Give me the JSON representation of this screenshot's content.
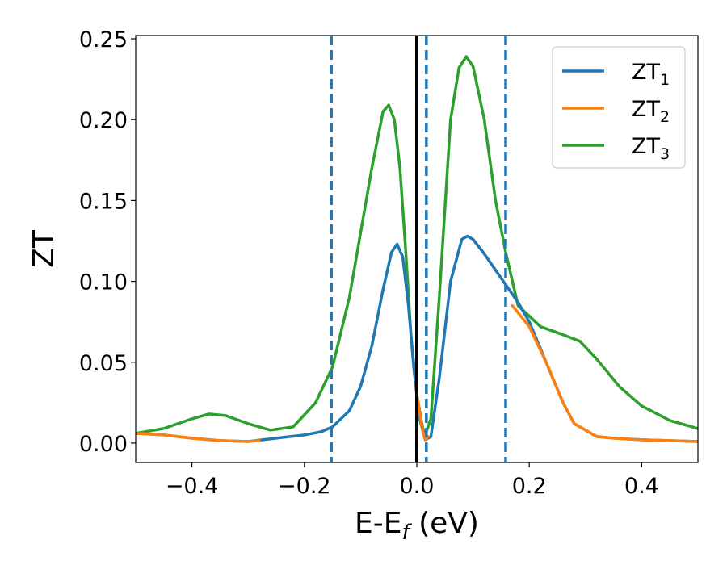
{
  "chart_data": {
    "type": "line",
    "xlabel_main": "E-E",
    "xlabel_sub": "f",
    "xlabel_unit": " (eV)",
    "ylabel": "ZT",
    "xlim": [
      -0.5,
      0.5
    ],
    "ylim": [
      -0.012,
      0.252
    ],
    "xticks": [
      -0.4,
      -0.2,
      0.0,
      0.2,
      0.4
    ],
    "xtick_labels": [
      "−0.4",
      "−0.2",
      "0.0",
      "0.2",
      "0.4"
    ],
    "yticks": [
      0.0,
      0.05,
      0.1,
      0.15,
      0.2,
      0.25
    ],
    "ytick_labels": [
      "0.00",
      "0.05",
      "0.10",
      "0.15",
      "0.20",
      "0.25"
    ],
    "legend_position": "top-right",
    "vlines": [
      {
        "x": -0.152,
        "style": "dashed",
        "color": "#1f77b4"
      },
      {
        "x": 0.0,
        "style": "solid",
        "color": "#000000"
      },
      {
        "x": 0.017,
        "style": "dashed",
        "color": "#1f77b4"
      },
      {
        "x": 0.158,
        "style": "dashed",
        "color": "#1f77b4"
      }
    ],
    "series": [
      {
        "name": "ZT",
        "sub": "3",
        "color": "#2ca02c",
        "points": [
          [
            -0.5,
            0.006
          ],
          [
            -0.45,
            0.009
          ],
          [
            -0.4,
            0.015
          ],
          [
            -0.37,
            0.018
          ],
          [
            -0.34,
            0.017
          ],
          [
            -0.3,
            0.012
          ],
          [
            -0.26,
            0.008
          ],
          [
            -0.22,
            0.01
          ],
          [
            -0.18,
            0.025
          ],
          [
            -0.15,
            0.047
          ],
          [
            -0.12,
            0.09
          ],
          [
            -0.1,
            0.13
          ],
          [
            -0.08,
            0.17
          ],
          [
            -0.06,
            0.205
          ],
          [
            -0.05,
            0.209
          ],
          [
            -0.04,
            0.2
          ],
          [
            -0.03,
            0.17
          ],
          [
            -0.02,
            0.12
          ],
          [
            -0.01,
            0.065
          ],
          [
            0.0,
            0.03
          ],
          [
            0.01,
            0.01
          ],
          [
            0.015,
            0.005
          ],
          [
            0.025,
            0.015
          ],
          [
            0.04,
            0.09
          ],
          [
            0.06,
            0.2
          ],
          [
            0.075,
            0.232
          ],
          [
            0.088,
            0.239
          ],
          [
            0.1,
            0.233
          ],
          [
            0.12,
            0.2
          ],
          [
            0.14,
            0.15
          ],
          [
            0.158,
            0.118
          ],
          [
            0.18,
            0.085
          ],
          [
            0.22,
            0.072
          ],
          [
            0.26,
            0.067
          ],
          [
            0.29,
            0.063
          ],
          [
            0.32,
            0.052
          ],
          [
            0.36,
            0.035
          ],
          [
            0.4,
            0.023
          ],
          [
            0.45,
            0.014
          ],
          [
            0.5,
            0.009
          ]
        ]
      },
      {
        "name": "ZT",
        "sub": "1",
        "color": "#1f77b4",
        "points": [
          [
            -0.5,
            0.006
          ],
          [
            -0.45,
            0.005
          ],
          [
            -0.4,
            0.003
          ],
          [
            -0.35,
            0.0015
          ],
          [
            -0.3,
            0.001
          ],
          [
            -0.25,
            0.003
          ],
          [
            -0.2,
            0.005
          ],
          [
            -0.17,
            0.007
          ],
          [
            -0.15,
            0.01
          ],
          [
            -0.12,
            0.02
          ],
          [
            -0.1,
            0.035
          ],
          [
            -0.08,
            0.06
          ],
          [
            -0.06,
            0.095
          ],
          [
            -0.045,
            0.118
          ],
          [
            -0.035,
            0.123
          ],
          [
            -0.025,
            0.115
          ],
          [
            -0.015,
            0.085
          ],
          [
            -0.005,
            0.045
          ],
          [
            0.005,
            0.015
          ],
          [
            0.015,
            0.002
          ],
          [
            0.025,
            0.004
          ],
          [
            0.04,
            0.04
          ],
          [
            0.06,
            0.1
          ],
          [
            0.08,
            0.126
          ],
          [
            0.09,
            0.128
          ],
          [
            0.1,
            0.126
          ],
          [
            0.12,
            0.117
          ],
          [
            0.15,
            0.102
          ],
          [
            0.18,
            0.087
          ],
          [
            0.2,
            0.075
          ],
          [
            0.23,
            0.05
          ],
          [
            0.26,
            0.025
          ],
          [
            0.28,
            0.012
          ],
          [
            0.32,
            0.004
          ],
          [
            0.35,
            0.003
          ],
          [
            0.4,
            0.002
          ],
          [
            0.5,
            0.001
          ]
        ]
      },
      {
        "name": "ZT",
        "sub": "2",
        "color": "#ff7f0e",
        "points": [
          [
            -0.5,
            0.006
          ],
          [
            -0.45,
            0.005
          ],
          [
            -0.4,
            0.003
          ],
          [
            -0.35,
            0.0015
          ],
          [
            -0.3,
            0.001
          ],
          [
            -0.28,
            0.0015
          ]
        ],
        "extra_segments": [
          [
            [
              0.17,
              0.085
            ],
            [
              0.2,
              0.072
            ],
            [
              0.23,
              0.05
            ],
            [
              0.26,
              0.025
            ],
            [
              0.28,
              0.012
            ],
            [
              0.32,
              0.004
            ],
            [
              0.35,
              0.003
            ],
            [
              0.4,
              0.002
            ],
            [
              0.5,
              0.001
            ]
          ],
          [
            [
              0.0,
              0.03
            ],
            [
              0.01,
              0.008
            ],
            [
              0.015,
              0.002
            ],
            [
              0.02,
              0.004
            ]
          ]
        ]
      }
    ],
    "legend": [
      {
        "label": "ZT",
        "sub": "1",
        "color": "#1f77b4"
      },
      {
        "label": "ZT",
        "sub": "2",
        "color": "#ff7f0e"
      },
      {
        "label": "ZT",
        "sub": "3",
        "color": "#2ca02c"
      }
    ]
  }
}
